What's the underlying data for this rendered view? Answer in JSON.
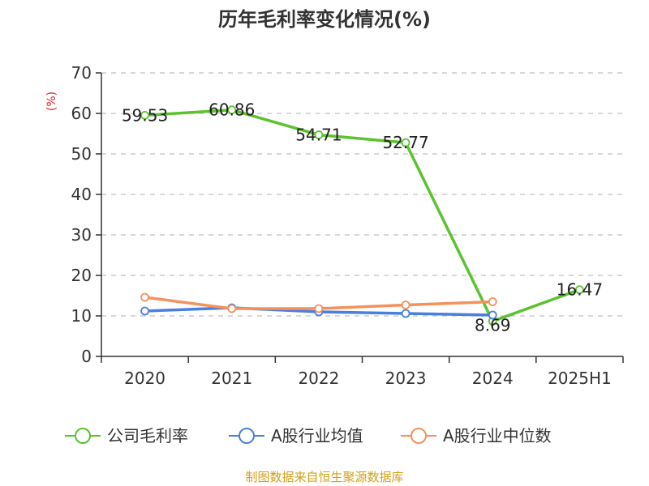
{
  "chart_data": {
    "type": "line",
    "title": "历年毛利率变化情况(%)",
    "ylabel": "(%)",
    "xlabel": "",
    "categories": [
      "2020",
      "2021",
      "2022",
      "2023",
      "2024",
      "2025H1"
    ],
    "ylim": [
      0,
      70
    ],
    "yticks": [
      0,
      10,
      20,
      30,
      40,
      50,
      60,
      70
    ],
    "grid": true,
    "legend_position": "bottom",
    "series": [
      {
        "name": "公司毛利率",
        "color": "#5cc22e",
        "values": [
          59.53,
          60.86,
          54.71,
          52.77,
          8.69,
          16.47
        ],
        "labels": [
          "59.53",
          "60.86",
          "54.71",
          "52.77",
          "8.69",
          "16.47"
        ]
      },
      {
        "name": "A股行业均值",
        "color": "#4a7fe0",
        "values": [
          11.2,
          12.0,
          11.0,
          10.6,
          10.2,
          null
        ]
      },
      {
        "name": "A股行业中位数",
        "color": "#f4925e",
        "values": [
          14.6,
          11.8,
          11.8,
          12.7,
          13.5,
          null
        ]
      }
    ],
    "source": "制图数据来自恒生聚源数据库",
    "ylabel_color": "#e02020",
    "source_color": "#d4a017"
  }
}
